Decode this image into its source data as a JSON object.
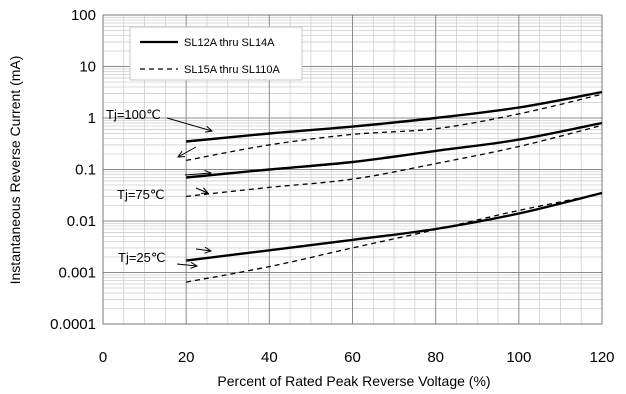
{
  "chart_data": {
    "type": "line",
    "xlabel": "Percent of  Rated Peak Reverse Voltage (%)",
    "ylabel": "Instantaneous Reverse Current (mA)",
    "xlim": [
      0,
      120
    ],
    "ylim": [
      0.0001,
      100
    ],
    "yscale": "log",
    "grid": true,
    "x_ticks": [
      "0",
      "20",
      "40",
      "60",
      "80",
      "100",
      "120"
    ],
    "y_ticks": [
      "0.0001",
      "0.001",
      "0.01",
      "0.1",
      "1",
      "10",
      "100"
    ],
    "legend": {
      "placement": "top-left",
      "entries": [
        {
          "label": "SL12A thru SL14A",
          "style": "solid"
        },
        {
          "label": "SL15A thru SL110A",
          "style": "dashed"
        }
      ]
    },
    "annotations": [
      "Tj=100℃",
      "Tj=75℃",
      "Tj=25℃"
    ],
    "x": [
      20,
      40,
      60,
      80,
      100,
      120
    ],
    "series": [
      {
        "group": "Tj=100℃",
        "style": "solid",
        "values": [
          0.35,
          0.5,
          0.68,
          1.0,
          1.6,
          3.2
        ]
      },
      {
        "group": "Tj=100℃",
        "style": "dashed",
        "values": [
          0.15,
          0.3,
          0.48,
          0.62,
          1.2,
          2.9
        ]
      },
      {
        "group": "Tj=75℃",
        "style": "solid",
        "values": [
          0.07,
          0.1,
          0.14,
          0.23,
          0.38,
          0.8
        ]
      },
      {
        "group": "Tj=75℃",
        "style": "dashed",
        "values": [
          0.03,
          0.045,
          0.065,
          0.13,
          0.28,
          0.72
        ]
      },
      {
        "group": "Tj=25℃",
        "style": "solid",
        "values": [
          0.0017,
          0.0027,
          0.0043,
          0.007,
          0.014,
          0.035
        ]
      },
      {
        "group": "Tj=25℃",
        "style": "dashed",
        "values": [
          0.00065,
          0.0013,
          0.003,
          0.0068,
          0.016,
          0.034
        ]
      }
    ]
  }
}
